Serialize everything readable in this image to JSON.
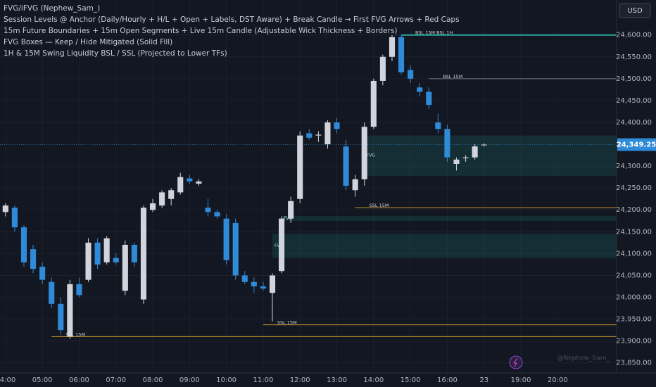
{
  "chart_data": {
    "type": "candlestick",
    "currency": "USD",
    "indicator_lines": [
      "FVG/iFVG (Nephew_Sam_)",
      "Session Levels @ Anchor (Daily/Hourly + H/L + Open + Labels, DST Aware) + Break Candle → First FVG Arrows + Red Caps",
      "15m Future Boundaries + 15m Open Segments + Live 15m Candle (Adjustable Wick Thickness + Borders)",
      "FVG Boxes — Keep / Hide Mitigated (Solid Fill)",
      "1H & 15M Swing Liquidity BSL / SSL (Projected to Lower TFs)"
    ],
    "watermark": "@Nephew_Sam_",
    "up_color": "#d1d4dc",
    "down_color": "#2f8ad8",
    "xlim": [
      3.85,
      20.6
    ],
    "ylim": [
      23827,
      24680
    ],
    "xticks": [
      {
        "value": 4,
        "label": "04:00"
      },
      {
        "value": 5,
        "label": "05:00"
      },
      {
        "value": 6,
        "label": "06:00"
      },
      {
        "value": 7,
        "label": "07:00"
      },
      {
        "value": 8,
        "label": "08:00"
      },
      {
        "value": 9,
        "label": "09:00"
      },
      {
        "value": 10,
        "label": "10:00"
      },
      {
        "value": 11,
        "label": "11:00"
      },
      {
        "value": 12,
        "label": "12:00"
      },
      {
        "value": 13,
        "label": "13:00"
      },
      {
        "value": 14,
        "label": "14:00"
      },
      {
        "value": 15,
        "label": "15:00"
      },
      {
        "value": 16,
        "label": "16:00"
      },
      {
        "value": 17,
        "label": "23"
      },
      {
        "value": 18,
        "label": "19:00"
      },
      {
        "value": 19,
        "label": "20:00"
      }
    ],
    "yticks": [
      {
        "value": 23850,
        "label": "23,850.00"
      },
      {
        "value": 23900,
        "label": "23,900.00"
      },
      {
        "value": 23950,
        "label": "23,950.00"
      },
      {
        "value": 24000,
        "label": "24,000.00"
      },
      {
        "value": 24050,
        "label": "24,050.00"
      },
      {
        "value": 24100,
        "label": "24,100.00"
      },
      {
        "value": 24150,
        "label": "24,150.00"
      },
      {
        "value": 24200,
        "label": "24,200.00"
      },
      {
        "value": 24250,
        "label": "24,250.00"
      },
      {
        "value": 24300,
        "label": "24,300.00"
      },
      {
        "value": 24350,
        "label": "24,350.00"
      },
      {
        "value": 24400,
        "label": "24,400.00"
      },
      {
        "value": 24450,
        "label": "24,450.00"
      },
      {
        "value": 24500,
        "label": "24,500.00"
      },
      {
        "value": 24550,
        "label": "24,550.00"
      },
      {
        "value": 24600,
        "label": "24,600.00"
      }
    ],
    "x": [
      4.0,
      4.25,
      4.5,
      4.75,
      5.0,
      5.25,
      5.5,
      5.75,
      6.0,
      6.25,
      6.5,
      6.75,
      7.0,
      7.25,
      7.5,
      7.75,
      8.0,
      8.25,
      8.5,
      8.75,
      9.0,
      9.25,
      9.5,
      9.75,
      10.0,
      10.25,
      10.5,
      10.75,
      11.0,
      11.25,
      11.5,
      11.75,
      12.0,
      12.25,
      12.5,
      12.75,
      13.0,
      13.25,
      13.5,
      13.75,
      14.0,
      14.25,
      14.5,
      14.75,
      15.0,
      15.25,
      15.5,
      15.75,
      16.0,
      16.25,
      16.5,
      16.75,
      17.0
    ],
    "open": [
      24195,
      24205,
      24160,
      24110,
      24070,
      24035,
      23985,
      23910,
      24030,
      24040,
      24125,
      24080,
      24090,
      24015,
      24120,
      23995,
      24200,
      24210,
      24225,
      24240,
      24272,
      24260,
      24205,
      24195,
      24180,
      24170,
      24050,
      24035,
      24025,
      24010,
      24060,
      24180,
      24225,
      24375,
      24370,
      24350,
      24400,
      24345,
      24245,
      24270,
      24390,
      24495,
      24550,
      24595,
      24520,
      24480,
      24470,
      24400,
      24385,
      24305,
      24318,
      24320,
      24349.25
    ],
    "high": [
      24215,
      24210,
      24165,
      24120,
      24080,
      24045,
      24000,
      24040,
      24045,
      24135,
      24135,
      24140,
      24100,
      24130,
      24125,
      24210,
      24225,
      24245,
      24250,
      24285,
      24280,
      24270,
      24225,
      24200,
      24190,
      24180,
      24060,
      24045,
      24035,
      24055,
      24185,
      24230,
      24380,
      24385,
      24380,
      24405,
      24410,
      24360,
      24280,
      24400,
      24500,
      24555,
      24600,
      24600,
      24530,
      24490,
      24480,
      24420,
      24395,
      24320,
      24325,
      24350,
      24352
    ],
    "low": [
      24185,
      24150,
      24070,
      24055,
      24030,
      23975,
      23915,
      23905,
      24000,
      24035,
      24065,
      24075,
      24075,
      24005,
      24070,
      23985,
      24195,
      24205,
      24210,
      24235,
      24260,
      24255,
      24185,
      24180,
      24075,
      24040,
      24030,
      24010,
      24015,
      23945,
      24055,
      24170,
      24215,
      24360,
      24355,
      24340,
      24375,
      24245,
      24230,
      24255,
      24385,
      24485,
      24540,
      24510,
      24490,
      24460,
      24430,
      24375,
      24310,
      24290,
      24310,
      24315,
      24345
    ],
    "close": [
      24210,
      24160,
      24080,
      24065,
      24040,
      23985,
      23925,
      24030,
      24005,
      24125,
      24075,
      24135,
      24080,
      24120,
      24080,
      24205,
      24215,
      24240,
      24245,
      24275,
      24265,
      24265,
      24195,
      24185,
      24085,
      24050,
      24035,
      24025,
      24020,
      24050,
      24180,
      24220,
      24370,
      24365,
      24372,
      24400,
      24385,
      24255,
      24270,
      24390,
      24495,
      24550,
      24595,
      24515,
      24500,
      24470,
      24440,
      24385,
      24320,
      24315,
      24320,
      24345,
      24349.25
    ],
    "last_price": {
      "value": 24349.25,
      "label": "24,349.25"
    },
    "levels": [
      {
        "label": "BSL 15M BSL 1H",
        "value": 24600,
        "start": 14.75,
        "color": "#26a69a"
      },
      {
        "label": "BSL 15M",
        "value": 24500,
        "start": 15.5,
        "color": "#787b86"
      },
      {
        "label": "SSL 15M",
        "value": 24205,
        "start": 13.5,
        "color": "#c9962b"
      },
      {
        "label": "SSL 15M",
        "value": 23937,
        "start": 11.0,
        "color": "#c9962b"
      },
      {
        "label": "SSL 15M",
        "value": 23910,
        "start": 5.25,
        "color": "#c9962b"
      }
    ],
    "fvg_boxes": [
      {
        "label": "FVG",
        "top": 24370,
        "bottom": 24278,
        "start": 13.75
      },
      {
        "label": "FVG",
        "top": 24186,
        "bottom": 24175,
        "start": 11.5
      },
      {
        "label": "FVG",
        "top": 24145,
        "bottom": 24090,
        "start": 11.25
      }
    ]
  }
}
